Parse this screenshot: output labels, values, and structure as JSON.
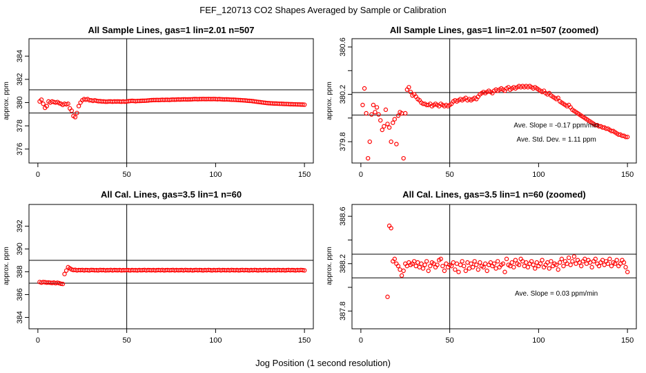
{
  "figure": {
    "title": "FEF_120713  CO2 Shapes Averaged by Sample or Calibration",
    "xlabel": "Jog Position (1 second resolution)"
  },
  "chart_data": [
    {
      "type": "scatter",
      "title": "All Sample Lines, gas=1 lin=2.01 n=507",
      "ylabel": "approx. ppm",
      "xlim": [
        -5,
        155
      ],
      "ylim": [
        374.8,
        385.5
      ],
      "xticks": [
        0,
        50,
        100,
        150
      ],
      "yticks": [
        376,
        378,
        380,
        382,
        384
      ],
      "marker_color": "#ff0000",
      "hlines": [
        381.1,
        379.1
      ],
      "vlines": [
        50
      ],
      "annotations": [],
      "x": [
        1,
        2,
        3,
        4,
        5,
        6,
        7,
        8,
        9,
        10,
        11,
        12,
        13,
        14,
        15,
        16,
        17,
        18,
        19,
        20,
        21,
        22,
        23,
        24,
        25,
        26,
        27,
        28,
        29,
        30,
        31,
        32,
        33,
        34,
        35,
        36,
        37,
        38,
        39,
        40,
        41,
        42,
        43,
        44,
        45,
        46,
        47,
        48,
        49,
        50,
        51,
        52,
        53,
        54,
        55,
        56,
        57,
        58,
        59,
        60,
        61,
        62,
        63,
        64,
        65,
        66,
        67,
        68,
        69,
        70,
        71,
        72,
        73,
        74,
        75,
        76,
        77,
        78,
        79,
        80,
        81,
        82,
        83,
        84,
        85,
        86,
        87,
        88,
        89,
        90,
        91,
        92,
        93,
        94,
        95,
        96,
        97,
        98,
        99,
        100,
        101,
        102,
        103,
        104,
        105,
        106,
        107,
        108,
        109,
        110,
        111,
        112,
        113,
        114,
        115,
        116,
        117,
        118,
        119,
        120,
        121,
        122,
        123,
        124,
        125,
        126,
        127,
        128,
        129,
        130,
        131,
        132,
        133,
        134,
        135,
        136,
        137,
        138,
        139,
        140,
        141,
        142,
        143,
        144,
        145,
        146,
        147,
        148,
        149,
        150
      ],
      "y": [
        380.1,
        380.25,
        379.9,
        379.55,
        379.7,
        380.1,
        380.0,
        380.1,
        380.05,
        380.0,
        380.05,
        379.95,
        379.9,
        379.8,
        379.9,
        379.85,
        379.9,
        379.5,
        379.3,
        378.85,
        378.75,
        379.1,
        379.7,
        380.0,
        380.2,
        380.3,
        380.25,
        380.3,
        380.2,
        380.2,
        380.15,
        380.2,
        380.15,
        380.12,
        380.12,
        380.1,
        380.1,
        380.08,
        380.08,
        380.1,
        380.1,
        380.08,
        380.1,
        380.09,
        380.1,
        380.09,
        380.08,
        380.1,
        380.08,
        380.1,
        380.12,
        380.14,
        380.15,
        380.14,
        380.12,
        380.14,
        380.14,
        380.15,
        380.16,
        380.16,
        380.17,
        380.18,
        380.2,
        380.21,
        380.22,
        380.22,
        380.23,
        380.22,
        380.23,
        380.24,
        380.23,
        380.24,
        380.24,
        380.23,
        380.25,
        380.26,
        380.25,
        380.26,
        380.27,
        380.26,
        380.27,
        380.28,
        380.28,
        380.27,
        380.28,
        380.28,
        380.29,
        380.3,
        380.3,
        380.29,
        380.3,
        380.3,
        380.31,
        380.3,
        380.3,
        380.31,
        380.3,
        380.3,
        380.31,
        380.3,
        380.29,
        380.3,
        380.29,
        380.28,
        380.27,
        380.28,
        380.27,
        380.26,
        380.25,
        380.25,
        380.24,
        380.23,
        380.22,
        380.21,
        380.2,
        380.19,
        380.18,
        380.16,
        380.15,
        380.14,
        380.12,
        380.1,
        380.08,
        380.06,
        380.04,
        380.02,
        380.0,
        379.98,
        379.96,
        379.95,
        379.94,
        379.93,
        379.92,
        379.92,
        379.91,
        379.9,
        379.9,
        379.89,
        379.88,
        379.88,
        379.87,
        379.86,
        379.86,
        379.85,
        379.85,
        379.84,
        379.84,
        379.83,
        379.83,
        379.82
      ]
    },
    {
      "type": "scatter",
      "title": "All Sample Lines, gas=1 lin=2.01 n=507 (zoomed)",
      "ylabel": "approx. ppm",
      "xlim": [
        -5,
        155
      ],
      "ylim": [
        379.62,
        380.67
      ],
      "xticks": [
        0,
        50,
        100,
        150
      ],
      "yticks": [
        379.8,
        380.2,
        380.6
      ],
      "minor_yticks": [
        380.0,
        380.4
      ],
      "marker_color": "#ff0000",
      "hlines": [
        380.215,
        380.025
      ],
      "vlines": [
        50
      ],
      "annotations": [
        {
          "text": "Ave. Slope =  -0.17  ppm/min",
          "x": 110,
          "y": 379.92
        },
        {
          "text": "Ave. Std. Dev. =  1.11  ppm",
          "x": 110,
          "y": 379.8
        }
      ],
      "x": [
        1,
        2,
        3,
        4,
        5,
        6,
        7,
        8,
        9,
        10,
        11,
        12,
        13,
        14,
        15,
        16,
        17,
        18,
        19,
        20,
        21,
        22,
        23,
        24,
        25,
        26,
        27,
        28,
        29,
        30,
        31,
        32,
        33,
        34,
        35,
        36,
        37,
        38,
        39,
        40,
        41,
        42,
        43,
        44,
        45,
        46,
        47,
        48,
        49,
        50,
        51,
        52,
        53,
        54,
        55,
        56,
        57,
        58,
        59,
        60,
        61,
        62,
        63,
        64,
        65,
        66,
        67,
        68,
        69,
        70,
        71,
        72,
        73,
        74,
        75,
        76,
        77,
        78,
        79,
        80,
        81,
        82,
        83,
        84,
        85,
        86,
        87,
        88,
        89,
        90,
        91,
        92,
        93,
        94,
        95,
        96,
        97,
        98,
        99,
        100,
        101,
        102,
        103,
        104,
        105,
        106,
        107,
        108,
        109,
        110,
        111,
        112,
        113,
        114,
        115,
        116,
        117,
        118,
        119,
        120,
        121,
        122,
        123,
        124,
        125,
        126,
        127,
        128,
        129,
        130,
        131,
        132,
        133,
        134,
        135,
        136,
        137,
        138,
        139,
        140,
        141,
        142,
        143,
        144,
        145,
        146,
        147,
        148,
        149,
        150
      ],
      "y": [
        380.11,
        380.25,
        380.04,
        379.66,
        379.8,
        380.03,
        380.11,
        380.05,
        380.09,
        380.03,
        379.98,
        379.9,
        379.93,
        380.07,
        379.95,
        379.92,
        379.8,
        379.96,
        379.99,
        379.78,
        380.02,
        380.05,
        380.04,
        379.66,
        380.04,
        380.24,
        380.26,
        380.22,
        380.19,
        380.2,
        380.18,
        380.16,
        380.15,
        380.13,
        380.12,
        380.12,
        380.11,
        380.11,
        380.12,
        380.1,
        380.11,
        380.12,
        380.11,
        380.1,
        380.12,
        380.11,
        380.1,
        380.11,
        380.1,
        380.11,
        380.12,
        380.14,
        380.15,
        380.14,
        380.15,
        380.16,
        380.15,
        380.16,
        380.17,
        380.15,
        380.16,
        380.15,
        380.16,
        380.17,
        380.16,
        380.18,
        380.2,
        380.21,
        380.22,
        380.21,
        380.22,
        380.23,
        380.22,
        380.21,
        380.23,
        380.24,
        380.23,
        380.24,
        380.25,
        380.24,
        380.23,
        380.25,
        380.26,
        380.24,
        380.25,
        380.26,
        380.25,
        380.26,
        380.27,
        380.26,
        380.27,
        380.26,
        380.27,
        380.26,
        380.27,
        380.26,
        380.25,
        380.26,
        380.25,
        380.24,
        380.23,
        380.22,
        380.23,
        380.21,
        380.2,
        380.21,
        380.19,
        380.18,
        380.17,
        380.16,
        380.17,
        380.14,
        380.13,
        380.12,
        380.11,
        380.1,
        380.11,
        380.09,
        380.07,
        380.06,
        380.05,
        380.04,
        380.03,
        380.02,
        380.01,
        380.0,
        379.99,
        379.98,
        379.97,
        379.96,
        379.95,
        379.94,
        379.94,
        379.93,
        379.93,
        379.92,
        379.92,
        379.91,
        379.91,
        379.9,
        379.89,
        379.89,
        379.88,
        379.87,
        379.86,
        379.86,
        379.85,
        379.85,
        379.84,
        379.84
      ]
    },
    {
      "type": "scatter",
      "title": "All Cal. Lines, gas=3.5 lin=1 n=60",
      "ylabel": "approx. ppm",
      "xlim": [
        -5,
        155
      ],
      "ylim": [
        383.0,
        393.9
      ],
      "xticks": [
        0,
        50,
        100,
        150
      ],
      "yticks": [
        384,
        386,
        388,
        390,
        392
      ],
      "marker_color": "#ff0000",
      "hlines": [
        389.0,
        387.0
      ],
      "vlines": [
        50
      ],
      "annotations": [],
      "x": [
        1,
        2,
        3,
        4,
        5,
        6,
        7,
        8,
        9,
        10,
        11,
        12,
        13,
        14,
        15,
        16,
        17,
        18,
        19,
        20,
        21,
        22,
        23,
        24,
        25,
        26,
        27,
        28,
        29,
        30,
        31,
        32,
        33,
        34,
        35,
        36,
        37,
        38,
        39,
        40,
        41,
        42,
        43,
        44,
        45,
        46,
        47,
        48,
        49,
        50,
        51,
        52,
        53,
        54,
        55,
        56,
        57,
        58,
        59,
        60,
        61,
        62,
        63,
        64,
        65,
        66,
        67,
        68,
        69,
        70,
        71,
        72,
        73,
        74,
        75,
        76,
        77,
        78,
        79,
        80,
        81,
        82,
        83,
        84,
        85,
        86,
        87,
        88,
        89,
        90,
        91,
        92,
        93,
        94,
        95,
        96,
        97,
        98,
        99,
        100,
        101,
        102,
        103,
        104,
        105,
        106,
        107,
        108,
        109,
        110,
        111,
        112,
        113,
        114,
        115,
        116,
        117,
        118,
        119,
        120,
        121,
        122,
        123,
        124,
        125,
        126,
        127,
        128,
        129,
        130,
        131,
        132,
        133,
        134,
        135,
        136,
        137,
        138,
        139,
        140,
        141,
        142,
        143,
        144,
        145,
        146,
        147,
        148,
        149,
        150
      ],
      "y": [
        387.1,
        387.05,
        387.1,
        387.08,
        387.05,
        387.06,
        387.04,
        387.02,
        387.05,
        387.0,
        387.04,
        387.0,
        386.95,
        386.93,
        387.8,
        388.1,
        388.4,
        388.3,
        388.2,
        388.15,
        388.17,
        388.12,
        388.15,
        388.14,
        388.16,
        388.12,
        388.15,
        388.14,
        388.12,
        388.16,
        388.15,
        388.13,
        388.14,
        388.12,
        388.16,
        388.14,
        388.15,
        388.12,
        388.14,
        388.13,
        388.16,
        388.12,
        388.15,
        388.14,
        388.13,
        388.15,
        388.12,
        388.14,
        388.13,
        388.15,
        388.14,
        388.12,
        388.15,
        388.13,
        388.14,
        388.12,
        388.15,
        388.13,
        388.14,
        388.16,
        388.12,
        388.15,
        388.14,
        388.13,
        388.15,
        388.12,
        388.14,
        388.15,
        388.13,
        388.16,
        388.12,
        388.14,
        388.15,
        388.13,
        388.14,
        388.16,
        388.12,
        388.15,
        388.13,
        388.14,
        388.15,
        388.12,
        388.16,
        388.14,
        388.13,
        388.15,
        388.12,
        388.14,
        388.16,
        388.13,
        388.15,
        388.14,
        388.12,
        388.15,
        388.13,
        388.16,
        388.14,
        388.12,
        388.15,
        388.13,
        388.14,
        388.16,
        388.12,
        388.15,
        388.14,
        388.13,
        388.15,
        388.12,
        388.16,
        388.14,
        388.13,
        388.15,
        388.12,
        388.14,
        388.16,
        388.13,
        388.15,
        388.14,
        388.12,
        388.15,
        388.13,
        388.16,
        388.14,
        388.12,
        388.15,
        388.13,
        388.14,
        388.16,
        388.12,
        388.15,
        388.14,
        388.13,
        388.15,
        388.12,
        388.16,
        388.14,
        388.13,
        388.15,
        388.12,
        388.14,
        388.16,
        388.13,
        388.15,
        388.14,
        388.12,
        388.15,
        388.13,
        388.16,
        388.14,
        388.12
      ]
    },
    {
      "type": "scatter",
      "title": "All Cal. Lines, gas=3.5 lin=1 n=60 (zoomed)",
      "ylabel": "approx. ppm",
      "xlim": [
        -5,
        155
      ],
      "ylim": [
        387.65,
        388.7
      ],
      "xticks": [
        0,
        50,
        100,
        150
      ],
      "yticks": [
        387.8,
        388.2,
        388.6
      ],
      "minor_yticks": [
        388.0,
        388.4
      ],
      "marker_color": "#ff0000",
      "hlines": [
        388.28,
        388.08
      ],
      "vlines": [
        50
      ],
      "annotations": [
        {
          "text": "Ave. Slope =  0.03  ppm/min",
          "x": 110,
          "y": 387.93
        }
      ],
      "x": [
        15,
        16,
        17,
        18,
        19,
        20,
        21,
        22,
        23,
        24,
        25,
        26,
        27,
        28,
        29,
        30,
        31,
        32,
        33,
        34,
        35,
        36,
        37,
        38,
        39,
        40,
        41,
        42,
        43,
        44,
        45,
        46,
        47,
        48,
        49,
        50,
        51,
        52,
        53,
        54,
        55,
        56,
        57,
        58,
        59,
        60,
        61,
        62,
        63,
        64,
        65,
        66,
        67,
        68,
        69,
        70,
        71,
        72,
        73,
        74,
        75,
        76,
        77,
        78,
        79,
        80,
        81,
        82,
        83,
        84,
        85,
        86,
        87,
        88,
        89,
        90,
        91,
        92,
        93,
        94,
        95,
        96,
        97,
        98,
        99,
        100,
        101,
        102,
        103,
        104,
        105,
        106,
        107,
        108,
        109,
        110,
        111,
        112,
        113,
        114,
        115,
        116,
        117,
        118,
        119,
        120,
        121,
        122,
        123,
        124,
        125,
        126,
        127,
        128,
        129,
        130,
        131,
        132,
        133,
        134,
        135,
        136,
        137,
        138,
        139,
        140,
        141,
        142,
        143,
        144,
        145,
        146,
        147,
        148,
        149,
        150
      ],
      "y": [
        387.92,
        388.52,
        388.5,
        388.22,
        388.24,
        388.2,
        388.18,
        388.15,
        388.1,
        388.14,
        388.2,
        388.18,
        388.21,
        388.19,
        388.2,
        388.22,
        388.18,
        388.21,
        388.17,
        388.2,
        388.16,
        388.19,
        388.22,
        388.14,
        388.18,
        388.21,
        388.2,
        388.17,
        388.19,
        388.23,
        388.24,
        388.18,
        388.14,
        388.2,
        388.17,
        388.19,
        388.18,
        388.21,
        388.15,
        388.2,
        388.13,
        388.19,
        388.22,
        388.18,
        388.14,
        388.21,
        388.16,
        388.2,
        388.17,
        388.22,
        388.19,
        388.15,
        388.21,
        388.18,
        388.17,
        388.2,
        388.14,
        388.19,
        388.21,
        388.18,
        388.2,
        388.16,
        388.22,
        388.17,
        388.19,
        388.2,
        388.13,
        388.24,
        388.19,
        388.18,
        388.21,
        388.17,
        388.23,
        388.2,
        388.19,
        388.24,
        388.22,
        388.18,
        388.21,
        388.17,
        388.2,
        388.22,
        388.19,
        388.16,
        388.21,
        388.18,
        388.2,
        388.23,
        388.17,
        388.19,
        388.21,
        388.16,
        388.22,
        388.18,
        388.2,
        388.19,
        388.15,
        388.21,
        388.24,
        388.18,
        388.22,
        388.2,
        388.25,
        388.19,
        388.22,
        388.26,
        388.2,
        388.23,
        388.21,
        388.18,
        388.22,
        388.24,
        388.2,
        388.23,
        388.21,
        388.17,
        388.22,
        388.24,
        388.2,
        388.18,
        388.21,
        388.23,
        388.19,
        388.22,
        388.2,
        388.24,
        388.18,
        388.21,
        388.2,
        388.23,
        388.18,
        388.2,
        388.23,
        388.21,
        388.17,
        388.13
      ]
    }
  ]
}
